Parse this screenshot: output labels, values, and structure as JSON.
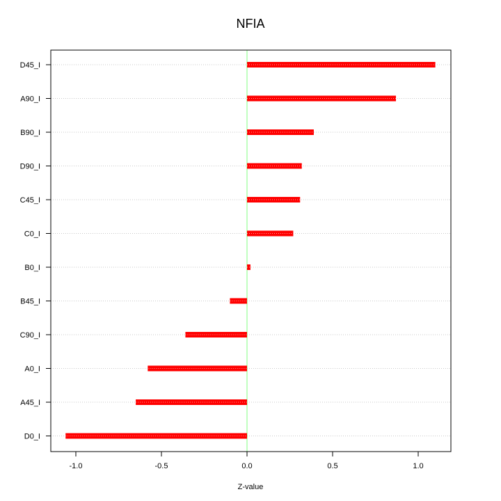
{
  "chart_data": {
    "type": "bar",
    "orientation": "horizontal",
    "title": "NFIA",
    "xlabel": "Z-value",
    "ylabel": "",
    "xlim": [
      -1.12,
      1.2
    ],
    "x_ticks": [
      -1.0,
      -0.5,
      0.0,
      0.5,
      1.0
    ],
    "x_tick_labels": [
      "-1.0",
      "-0.5",
      "0.0",
      "0.5",
      "1.0"
    ],
    "categories": [
      "D45_I",
      "A90_I",
      "B90_I",
      "D90_I",
      "C45_I",
      "C0_I",
      "B0_I",
      "B45_I",
      "C90_I",
      "A0_I",
      "A45_I",
      "D0_I"
    ],
    "values": [
      1.1,
      0.87,
      0.39,
      0.32,
      0.31,
      0.27,
      0.02,
      -0.1,
      -0.36,
      -0.58,
      -0.65,
      -1.06
    ],
    "bar_color": "#ff0000",
    "reference_line": {
      "x": 0,
      "color": "#80ff80"
    },
    "grid": "horizontal dotted at each category"
  }
}
